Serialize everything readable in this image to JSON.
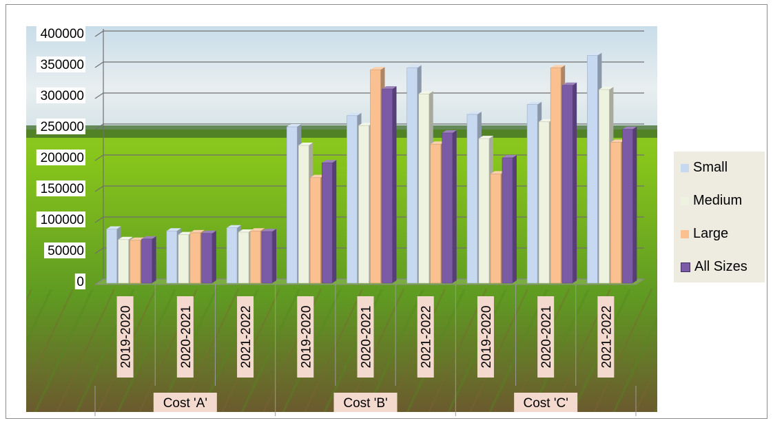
{
  "chart_data": {
    "type": "bar",
    "ylim": [
      0,
      400000
    ],
    "yticks": [
      0,
      50000,
      100000,
      150000,
      200000,
      250000,
      300000,
      350000,
      400000
    ],
    "groups": [
      "Cost 'A'",
      "Cost 'B'",
      "Cost 'C'"
    ],
    "categories": [
      "2019-2020",
      "2020-2021",
      "2021-2022",
      "2019-2020",
      "2020-2021",
      "2021-2022",
      "2019-2020",
      "2020-2021",
      "2021-2022"
    ],
    "series": [
      {
        "name": "Small",
        "color": "#c6d9f1",
        "values": [
          85000,
          82000,
          87000,
          250000,
          268000,
          345000,
          270000,
          286000,
          365000
        ]
      },
      {
        "name": "Medium",
        "color": "#eef3e0",
        "values": [
          68000,
          76000,
          80000,
          220000,
          252000,
          303000,
          231000,
          258000,
          310000
        ]
      },
      {
        "name": "Large",
        "color": "#fac090",
        "values": [
          67000,
          79000,
          82000,
          168000,
          342000,
          222000,
          174000,
          345000,
          225000
        ]
      },
      {
        "name": "All Sizes",
        "color": "#7b5aa6",
        "values": [
          69000,
          78000,
          81000,
          192000,
          311000,
          240000,
          200000,
          317000,
          246000
        ]
      }
    ],
    "grid": true,
    "legend": "right",
    "background": "rice-field-photo"
  }
}
